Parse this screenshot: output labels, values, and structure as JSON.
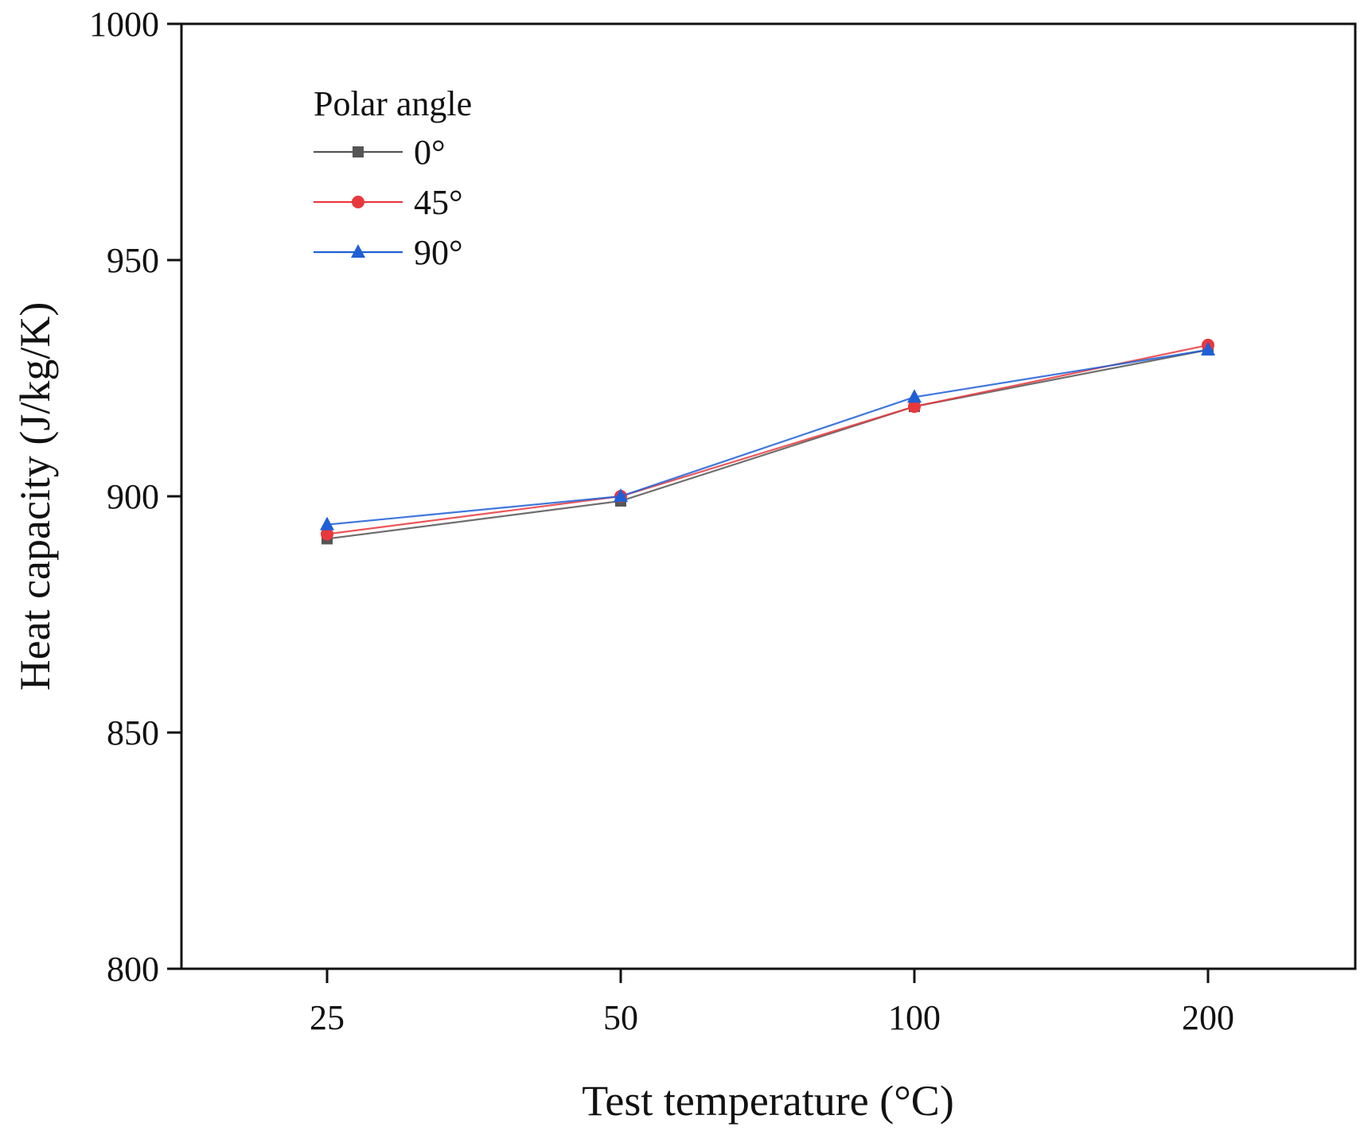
{
  "chart_data": {
    "type": "line",
    "title": "",
    "xlabel": "Test temperature (°C)",
    "ylabel": "Heat capacity (J/kg/K)",
    "categories": [
      "25",
      "50",
      "100",
      "200"
    ],
    "ylim": [
      800,
      1000
    ],
    "yticks": [
      "800",
      "850",
      "900",
      "950",
      "1000"
    ],
    "grid": false,
    "legend": {
      "title": "Polar angle",
      "position": "top-left"
    },
    "series": [
      {
        "name": "0°",
        "color": "#555555",
        "marker": "square",
        "values": [
          891,
          899,
          919,
          931
        ]
      },
      {
        "name": "45°",
        "color": "#e8383d",
        "marker": "circle",
        "values": [
          892,
          900,
          919,
          932
        ]
      },
      {
        "name": "90°",
        "color": "#1f5fd6",
        "marker": "triangle",
        "values": [
          894,
          900,
          921,
          931
        ]
      }
    ]
  }
}
